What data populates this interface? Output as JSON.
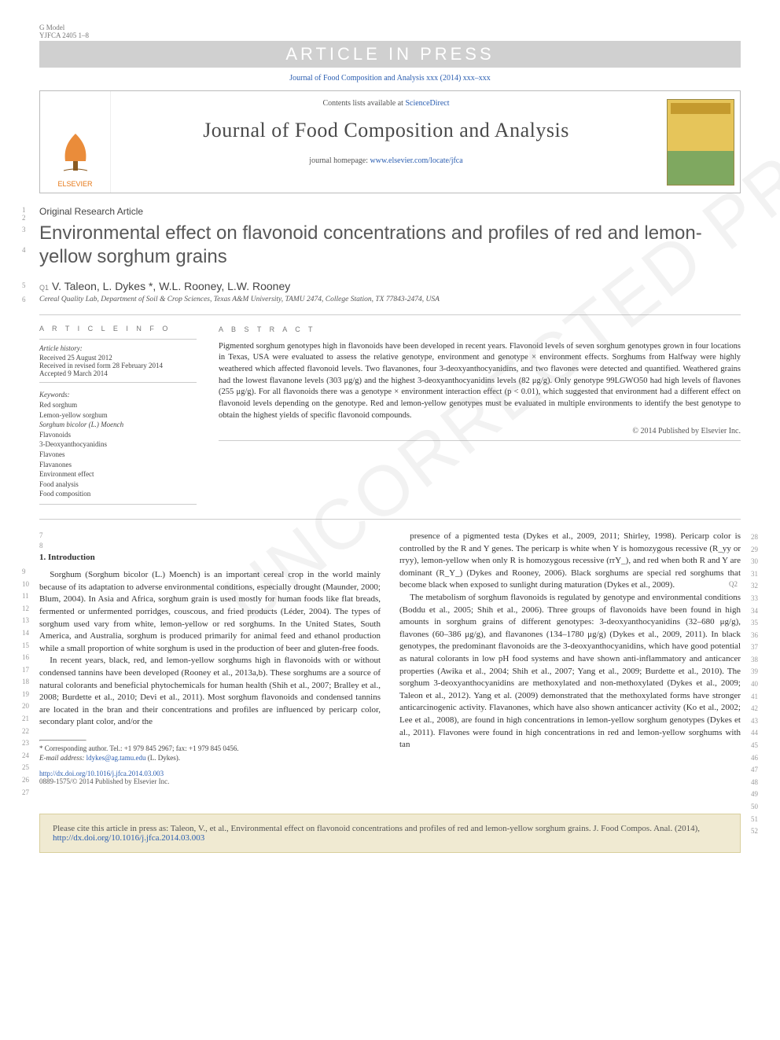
{
  "header": {
    "gmodel": "G Model",
    "docid": "YJFCA 2405 1–8",
    "watermark_bar": "ARTICLE IN PRESS",
    "journal_ref": "Journal of Food Composition and Analysis xxx (2014) xxx–xxx",
    "contents_line_prefix": "Contents lists available at ",
    "sciencedirect": "ScienceDirect",
    "journal_name": "Journal of Food Composition and Analysis",
    "homepage_prefix": "journal homepage: ",
    "homepage_url": "www.elsevier.com/locate/jfca",
    "publisher": "ELSEVIER",
    "cover_title": "FOOD COMPOSITION AND ANALYSIS"
  },
  "article": {
    "type": "Original Research Article",
    "title": "Environmental effect on flavonoid concentrations and profiles of red and lemon-yellow sorghum grains",
    "q1": "Q1",
    "authors": "V. Taleon, L. Dykes *, W.L. Rooney, L.W. Rooney",
    "affiliation": "Cereal Quality Lab, Department of Soil & Crop Sciences, Texas A&M University, TAMU 2474, College Station, TX 77843-2474, USA"
  },
  "info": {
    "head": "A R T I C L E   I N F O",
    "history_head": "Article history:",
    "received": "Received 25 August 2012",
    "revised": "Received in revised form 28 February 2014",
    "accepted": "Accepted 9 March 2014",
    "keywords_head": "Keywords:",
    "keywords": [
      "Red sorghum",
      "Lemon-yellow sorghum",
      "Sorghum bicolor (L.) Moench",
      "Flavonoids",
      "3-Deoxyanthocyanidins",
      "Flavones",
      "Flavanones",
      "Environment effect",
      "Food analysis",
      "Food composition"
    ]
  },
  "abstract": {
    "head": "A B S T R A C T",
    "text": "Pigmented sorghum genotypes high in flavonoids have been developed in recent years. Flavonoid levels of seven sorghum genotypes grown in four locations in Texas, USA were evaluated to assess the relative genotype, environment and genotype × environment effects. Sorghums from Halfway were highly weathered which affected flavonoid levels. Two flavanones, four 3-deoxyanthocyanidins, and two flavones were detected and quantified. Weathered grains had the lowest flavanone levels (303 μg/g) and the highest 3-deoxyanthocyanidins levels (82 μg/g). Only genotype 99LGWO50 had high levels of flavones (255 μg/g). For all flavonoids there was a genotype × environment interaction effect (p < 0.01), which suggested that environment had a different effect on flavonoid levels depending on the genotype. Red and lemon-yellow genotypes must be evaluated in multiple environments to identify the best genotype to obtain the highest yields of specific flavonoid compounds.",
    "copyright": "© 2014 Published by Elsevier Inc."
  },
  "body": {
    "sec1_head": "1.  Introduction",
    "left_text": "Sorghum (Sorghum bicolor (L.) Moench) is an important cereal crop in the world mainly because of its adaptation to adverse environmental conditions, especially drought (Maunder, 2000; Blum, 2004). In Asia and Africa, sorghum grain is used mostly for human foods like flat breads, fermented or unfermented porridges, couscous, and fried products (Léder, 2004). The types of sorghum used vary from white, lemon-yellow or red sorghums. In the United States, South America, and Australia, sorghum is produced primarily for animal feed and ethanol production while a small proportion of white sorghum is used in the production of beer and gluten-free foods.",
    "left_text2": "In recent years, black, red, and lemon-yellow sorghums high in flavonoids with or without condensed tannins have been developed (Rooney et al., 2013a,b). These sorghums are a source of natural colorants and beneficial phytochemicals for human health (Shih et al., 2007; Bralley et al., 2008; Burdette et al., 2010; Devi et al., 2011). Most sorghum flavonoids and condensed tannins are located in the bran and their concentrations and profiles are influenced by pericarp color, secondary plant color, and/or the",
    "right_text": "presence of a pigmented testa (Dykes et al., 2009, 2011; Shirley, 1998). Pericarp color is controlled by the R and Y genes. The pericarp is white when Y is homozygous recessive (R_yy or rryy), lemon-yellow when only R is homozygous recessive (rrY_), and red when both R and Y are dominant (R_Y_) (Dykes and Rooney, 2006). Black sorghums are special red sorghums that become black when exposed to sunlight during maturation (Dykes et al., 2009).",
    "right_text2": "The metabolism of sorghum flavonoids is regulated by genotype and environmental conditions (Boddu et al., 2005; Shih et al., 2006). Three groups of flavonoids have been found in high amounts in sorghum grains of different genotypes: 3-deoxyanthocyanidins (32–680 μg/g), flavones (60–386 μg/g), and flavanones (134–1780 μg/g) (Dykes et al., 2009, 2011). In black genotypes, the predominant flavonoids are the 3-deoxyanthocyanidins, which have good potential as natural colorants in low pH food systems and have shown anti-inflammatory and anticancer properties (Awika et al., 2004; Shih et al., 2007; Yang et al., 2009; Burdette et al., 2010). The sorghum 3-deoxyanthocyanidins are methoxylated and non-methoxylated (Dykes et al., 2009; Taleon et al., 2012). Yang et al. (2009) demonstrated that the methoxylated forms have stronger anticarcinogenic activity. Flavanones, which have also shown anticancer activity (Ko et al., 2002; Lee et al., 2008), are found in high concentrations in lemon-yellow sorghum genotypes (Dykes et al., 2011). Flavones were found in high concentrations in red and lemon-yellow sorghums with tan",
    "q2": "Q2"
  },
  "footer": {
    "corr": "* Corresponding author. Tel.: +1 979 845 2967; fax: +1 979 845 0456.",
    "email_label": "E-mail address: ",
    "email": "ldykes@ag.tamu.edu",
    "email_paren": " (L. Dykes).",
    "doi_url": "http://dx.doi.org/10.1016/j.jfca.2014.03.003",
    "issn_line": "0889-1575/© 2014 Published by Elsevier Inc."
  },
  "citebox": {
    "text_prefix": "Please cite this article in press as: Taleon, V., et al., Environmental effect on flavonoid concentrations and profiles of red and lemon-yellow sorghum grains. J. Food Compos. Anal. (2014), ",
    "url": "http://dx.doi.org/10.1016/j.jfca.2014.03.003"
  },
  "line_numbers": {
    "header_left": [
      "1",
      "2",
      "3",
      "4",
      "5",
      "6"
    ],
    "body_left_start": 7,
    "body_left_end": 27,
    "body_right_start": 28,
    "body_right_end": 52
  },
  "watermark_diag": "UNCORRECTED PROOF",
  "colors": {
    "link": "#2a5db0",
    "orange": "#e67817",
    "watermark_bg": "#d0d0d0",
    "citebox_bg": "#f0ead2",
    "citebox_border": "#d9cf9c"
  }
}
